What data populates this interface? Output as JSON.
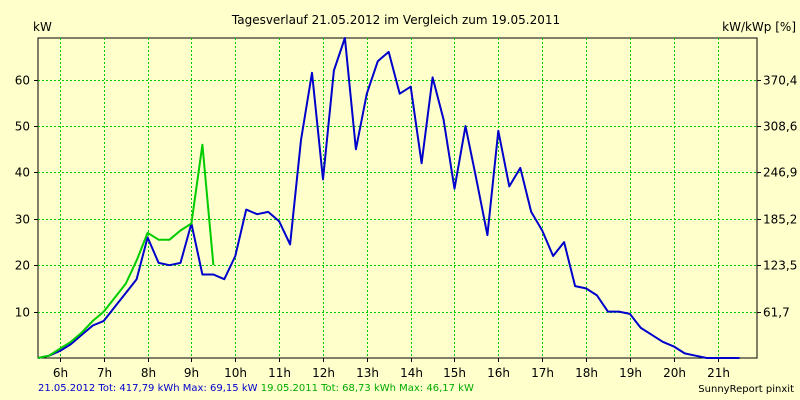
{
  "chart_data": {
    "type": "line",
    "title": "Tagesverlauf 21.05.2012 im Vergleich zum 19.05.2011",
    "ylabel_left": "kW",
    "ylabel_right": "kW/kWp [%]",
    "xlim": [
      5.5,
      21.9
    ],
    "ylim": [
      0,
      69
    ],
    "x_ticks": [
      6,
      7,
      8,
      9,
      10,
      11,
      12,
      13,
      14,
      15,
      16,
      17,
      18,
      19,
      20,
      21
    ],
    "x_tick_labels": [
      "6h",
      "7h",
      "8h",
      "9h",
      "10h",
      "11h",
      "12h",
      "13h",
      "14h",
      "15h",
      "16h",
      "17h",
      "18h",
      "19h",
      "20h",
      "21h"
    ],
    "y_ticks": [
      10,
      20,
      30,
      40,
      50,
      60
    ],
    "y_tick_labels": [
      "10",
      "20",
      "30",
      "40",
      "50",
      "60"
    ],
    "right_ticks": [
      10,
      20,
      30,
      40,
      50,
      60
    ],
    "right_tick_labels": [
      "61,7",
      "123,5",
      "185,2",
      "246,9",
      "308,6",
      "370,4"
    ],
    "grid": true,
    "series": [
      {
        "name": "21.05.2012",
        "color": "#0000cc",
        "x": [
          5.5,
          5.75,
          6.0,
          6.25,
          6.5,
          6.75,
          7.0,
          7.25,
          7.5,
          7.75,
          8.0,
          8.25,
          8.5,
          8.75,
          9.0,
          9.25,
          9.5,
          9.75,
          10.0,
          10.25,
          10.5,
          10.75,
          11.0,
          11.25,
          11.5,
          11.75,
          12.0,
          12.25,
          12.5,
          12.75,
          13.0,
          13.25,
          13.5,
          13.75,
          14.0,
          14.25,
          14.5,
          14.75,
          15.0,
          15.25,
          15.5,
          15.75,
          16.0,
          16.25,
          16.5,
          16.75,
          17.0,
          17.25,
          17.5,
          17.75,
          18.0,
          18.25,
          18.5,
          18.75,
          19.0,
          19.25,
          19.5,
          19.75,
          20.0,
          20.25,
          20.5,
          20.75,
          21.0,
          21.25,
          21.5
        ],
        "y": [
          0,
          0.5,
          1.5,
          3,
          5,
          7,
          8,
          11,
          14,
          17,
          26,
          20.5,
          20,
          20.5,
          29,
          18,
          18,
          17,
          22,
          32,
          31,
          31.5,
          29.5,
          24.5,
          47,
          61.5,
          38.5,
          62,
          69,
          45,
          57,
          64,
          66,
          57,
          58.5,
          42,
          60.5,
          51.5,
          36.5,
          50,
          38.5,
          26.5,
          49,
          37,
          41,
          31.5,
          27.5,
          22,
          25,
          15.5,
          15,
          13.5,
          10,
          10,
          9.5,
          6.5,
          5,
          3.5,
          2.5,
          1,
          0.5,
          0,
          0,
          0,
          0
        ]
      },
      {
        "name": "19.05.2011",
        "color": "#00cc00",
        "x": [
          5.5,
          5.75,
          6.0,
          6.25,
          6.5,
          6.75,
          7.0,
          7.25,
          7.5,
          7.75,
          8.0,
          8.25,
          8.5,
          8.75,
          9.0,
          9.25,
          9.5
        ],
        "y": [
          0,
          0.5,
          2,
          3.5,
          5.5,
          8,
          10,
          13,
          16,
          21,
          27,
          25.5,
          25.5,
          27.5,
          29,
          46,
          20
        ]
      }
    ]
  },
  "footer": {
    "current": "21.05.2012 Tot: 417,79 kWh Max: 69,15 kW",
    "comparison": "19.05.2011 Tot: 68,73 kWh Max: 46,17 kW",
    "credit": "SunnyReport pinxit"
  }
}
